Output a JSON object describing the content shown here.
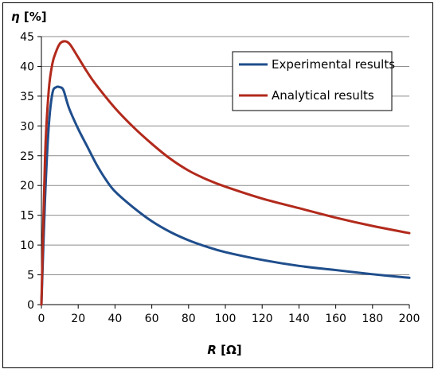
{
  "chart_data": {
    "type": "line",
    "xlabel": "R [Ω]",
    "ylabel": "η [%]",
    "xlabel_parts": {
      "symbol": "R",
      "unit": " [Ω]"
    },
    "ylabel_parts": {
      "symbol": "η",
      "unit": " [%]"
    },
    "xlim": [
      0,
      200
    ],
    "ylim": [
      0,
      45
    ],
    "x_ticks": [
      "0",
      "20",
      "40",
      "60",
      "80",
      "100",
      "120",
      "140",
      "160",
      "180",
      "200"
    ],
    "y_ticks": [
      "0",
      "5",
      "10",
      "15",
      "20",
      "25",
      "30",
      "35",
      "40",
      "45"
    ],
    "grid": "horizontal",
    "legend_position": "top-right",
    "series": [
      {
        "name": "Experimental results",
        "color": "#1f4e8c",
        "points": [
          [
            0,
            0
          ],
          [
            2,
            18
          ],
          [
            4,
            30
          ],
          [
            6,
            35.5
          ],
          [
            8,
            36.5
          ],
          [
            10,
            36.5
          ],
          [
            12,
            36
          ],
          [
            15,
            33
          ],
          [
            20,
            29.5
          ],
          [
            25,
            26.5
          ],
          [
            30,
            23.5
          ],
          [
            35,
            21
          ],
          [
            40,
            19
          ],
          [
            50,
            16.3
          ],
          [
            60,
            14
          ],
          [
            70,
            12.2
          ],
          [
            80,
            10.8
          ],
          [
            90,
            9.7
          ],
          [
            100,
            8.8
          ],
          [
            120,
            7.5
          ],
          [
            140,
            6.5
          ],
          [
            160,
            5.8
          ],
          [
            180,
            5.1
          ],
          [
            200,
            4.5
          ]
        ]
      },
      {
        "name": "Analytical results",
        "color": "#b22a1c",
        "points": [
          [
            0,
            0
          ],
          [
            2,
            25
          ],
          [
            4,
            36
          ],
          [
            6,
            40.5
          ],
          [
            8,
            42.5
          ],
          [
            10,
            43.8
          ],
          [
            12,
            44.2
          ],
          [
            14,
            44.1
          ],
          [
            16,
            43.5
          ],
          [
            20,
            41.5
          ],
          [
            25,
            39
          ],
          [
            30,
            36.8
          ],
          [
            40,
            33
          ],
          [
            50,
            29.8
          ],
          [
            60,
            27
          ],
          [
            70,
            24.5
          ],
          [
            80,
            22.5
          ],
          [
            90,
            21
          ],
          [
            100,
            19.8
          ],
          [
            120,
            17.8
          ],
          [
            140,
            16.2
          ],
          [
            160,
            14.6
          ],
          [
            180,
            13.2
          ],
          [
            200,
            12
          ]
        ]
      }
    ]
  }
}
